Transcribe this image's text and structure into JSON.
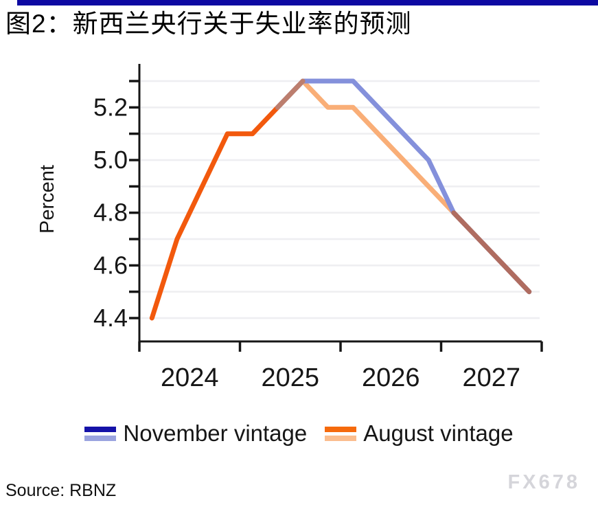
{
  "page": {
    "background": "#ffffff",
    "accent_bar_color": "#0d09a2"
  },
  "title": {
    "text": "图2：新西兰央行关于失业率的预测"
  },
  "chart_data": {
    "type": "line",
    "title": "图2：新西兰央行关于失业率的预测",
    "xlabel": "",
    "ylabel": "Percent",
    "ylim": [
      4.3,
      5.35
    ],
    "grid": "horizontal",
    "legend_position": "bottom",
    "x_categories": [
      "2024Q1",
      "2024Q2",
      "2024Q3",
      "2024Q4",
      "2025Q1",
      "2025Q2",
      "2025Q3",
      "2025Q4",
      "2026Q1",
      "2026Q2",
      "2026Q3",
      "2026Q4",
      "2027Q1",
      "2027Q2",
      "2027Q3",
      "2027Q4"
    ],
    "x_tick_labels": [
      "2024",
      "2025",
      "2026",
      "2027"
    ],
    "y_axis_labels": [
      {
        "value": 5.2,
        "text": "5.2"
      },
      {
        "value": 5.0,
        "text": "5.0"
      },
      {
        "value": 4.8,
        "text": "4.8"
      },
      {
        "value": 4.6,
        "text": "4.6"
      },
      {
        "value": 4.4,
        "text": "4.4"
      }
    ],
    "y_gridlines": [
      4.4,
      4.5,
      4.6,
      4.7,
      4.8,
      4.9,
      5.0,
      5.1,
      5.2,
      5.3
    ],
    "series": [
      {
        "name": "November vintage",
        "color": "#8490db",
        "values": [
          null,
          null,
          null,
          null,
          null,
          5.2,
          5.3,
          5.3,
          5.3,
          5.2,
          5.1,
          5.0,
          4.8,
          4.7,
          4.6,
          4.5
        ]
      },
      {
        "name": "August vintage",
        "color": "#f2590d",
        "values": [
          4.4,
          4.7,
          4.9,
          5.1,
          5.1,
          5.2,
          5.3,
          5.2,
          5.2,
          5.1,
          5.0,
          4.9,
          4.8,
          4.7,
          4.6,
          4.5
        ]
      }
    ],
    "render_segments": [
      {
        "name": "august-actual",
        "color": "#f2590d",
        "points": [
          [
            0,
            4.4
          ],
          [
            1,
            4.7
          ],
          [
            2,
            4.9
          ],
          [
            3,
            5.1
          ],
          [
            4,
            5.1
          ],
          [
            5,
            5.2
          ],
          [
            6,
            5.3
          ]
        ]
      },
      {
        "name": "august-forecast",
        "color": "#f9ae77",
        "points": [
          [
            6,
            5.3
          ],
          [
            7,
            5.2
          ],
          [
            8,
            5.2
          ],
          [
            9,
            5.1
          ],
          [
            10,
            5.0
          ],
          [
            11,
            4.9
          ],
          [
            12,
            4.8
          ],
          [
            13,
            4.7
          ],
          [
            14,
            4.6
          ],
          [
            15,
            4.5
          ]
        ]
      },
      {
        "name": "november",
        "color": "#8490db",
        "points": [
          [
            5,
            5.2
          ],
          [
            6,
            5.3
          ],
          [
            7,
            5.3
          ],
          [
            8,
            5.3
          ],
          [
            9,
            5.2
          ],
          [
            10,
            5.1
          ],
          [
            11,
            5.0
          ],
          [
            12,
            4.8
          ],
          [
            13,
            4.7
          ],
          [
            14,
            4.6
          ],
          [
            15,
            4.5
          ]
        ]
      },
      {
        "name": "overlap-rise",
        "color": "#bc7e6e",
        "points": [
          [
            5,
            5.2
          ],
          [
            6,
            5.3
          ]
        ]
      },
      {
        "name": "overlap-tail",
        "color": "#af6c60",
        "points": [
          [
            12,
            4.8
          ],
          [
            13,
            4.7
          ],
          [
            14,
            4.6
          ],
          [
            15,
            4.5
          ]
        ]
      }
    ]
  },
  "legend": {
    "items": [
      {
        "label": "November vintage",
        "swatch": [
          "#1512a8",
          "#9aa3df"
        ]
      },
      {
        "label": "August vintage",
        "swatch": [
          "#f56a0d",
          "#fbbd8e"
        ]
      }
    ]
  },
  "footer": {
    "source": "Source: RBNZ",
    "watermark": "FX678"
  }
}
